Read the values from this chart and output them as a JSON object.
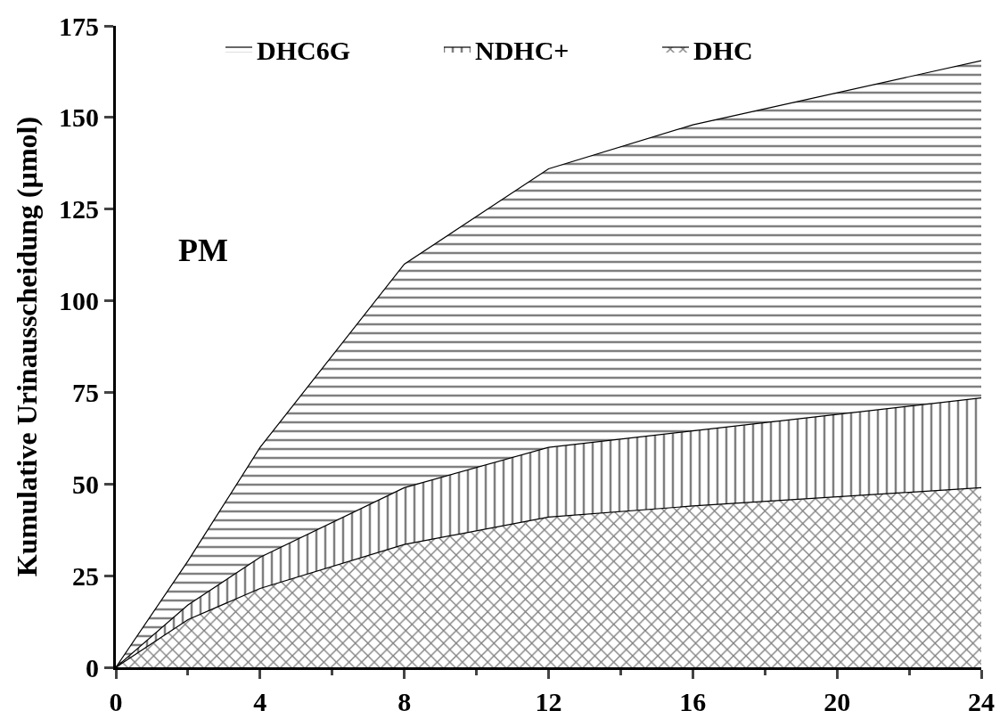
{
  "chart_data": {
    "type": "area",
    "stacked": true,
    "ylabel": "Kumulative Urinausscheidung (µmol)",
    "annotations": [
      "PM"
    ],
    "x": [
      0,
      2,
      4,
      8,
      12,
      16,
      24
    ],
    "series": [
      {
        "name": "DHC",
        "color": "#000000",
        "values": [
          0,
          13,
          21.5,
          33.5,
          41,
          44,
          49
        ]
      },
      {
        "name": "NDHC+",
        "color": "#000000",
        "values": [
          0,
          4,
          8.5,
          15.5,
          19,
          20.5,
          24.5
        ]
      },
      {
        "name": "DHC6G",
        "color": "#000000",
        "values": [
          0,
          12,
          30,
          61,
          76,
          83.5,
          92
        ]
      }
    ],
    "xlim": [
      0,
      24
    ],
    "xticks": [
      0,
      4,
      8,
      12,
      16,
      20,
      24
    ],
    "ylim": [
      0,
      175
    ],
    "yticks": [
      0,
      25,
      50,
      75,
      100,
      125,
      150,
      175
    ],
    "legend": "top"
  }
}
